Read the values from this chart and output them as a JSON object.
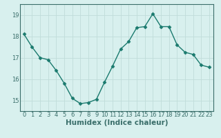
{
  "x": [
    0,
    1,
    2,
    3,
    4,
    5,
    6,
    7,
    8,
    9,
    10,
    11,
    12,
    13,
    14,
    15,
    16,
    17,
    18,
    19,
    20,
    21,
    22,
    23
  ],
  "y": [
    18.1,
    17.5,
    17.0,
    16.9,
    16.4,
    15.8,
    15.1,
    14.85,
    14.9,
    15.05,
    15.85,
    16.6,
    17.4,
    17.75,
    18.4,
    18.45,
    19.05,
    18.45,
    18.45,
    17.6,
    17.25,
    17.15,
    16.65,
    16.55
  ],
  "line_color": "#1a7a6e",
  "marker_color": "#1a7a6e",
  "bg_color": "#d8f0ee",
  "grid_color": "#c0dcd9",
  "axis_color": "#3a6e6a",
  "xlabel": "Humidex (Indice chaleur)",
  "ylim": [
    14.5,
    19.5
  ],
  "xlim": [
    -0.5,
    23.5
  ],
  "yticks": [
    15,
    16,
    17,
    18,
    19
  ],
  "xticks": [
    0,
    1,
    2,
    3,
    4,
    5,
    6,
    7,
    8,
    9,
    10,
    11,
    12,
    13,
    14,
    15,
    16,
    17,
    18,
    19,
    20,
    21,
    22,
    23
  ],
  "xtick_labels": [
    "0",
    "1",
    "2",
    "3",
    "4",
    "5",
    "6",
    "7",
    "8",
    "9",
    "10",
    "11",
    "12",
    "13",
    "14",
    "15",
    "16",
    "17",
    "18",
    "19",
    "20",
    "21",
    "22",
    "23"
  ],
  "xlabel_fontsize": 7.5,
  "tick_fontsize": 6.0
}
